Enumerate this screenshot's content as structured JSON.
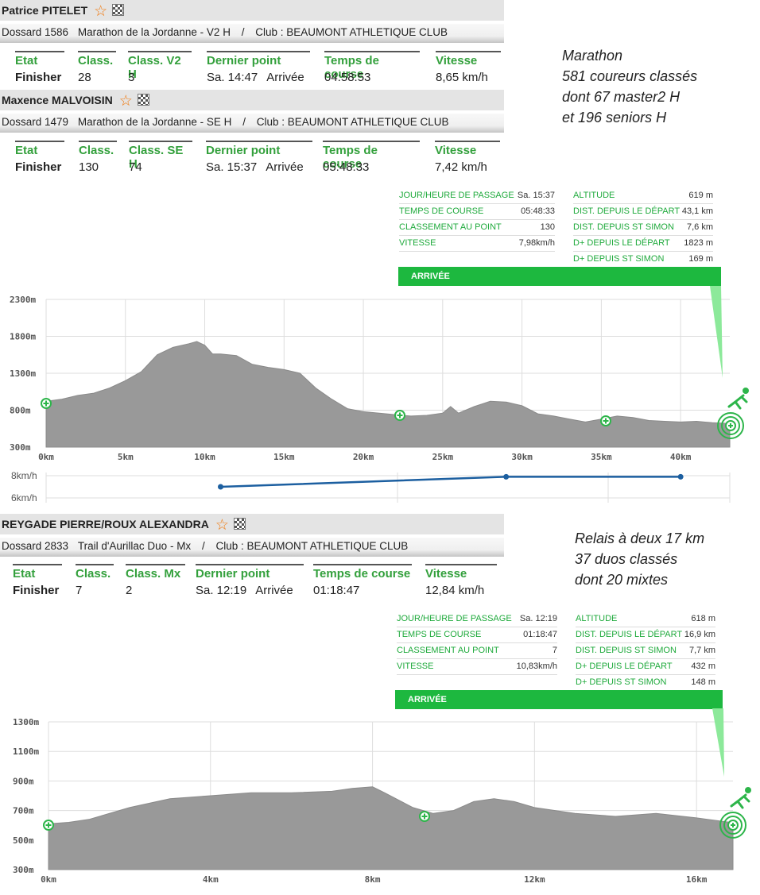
{
  "runner1": {
    "name": "Patrice PITELET",
    "dossard": "Dossard 1586",
    "course": "Marathon de la Jordanne - V2 H",
    "slash": "/",
    "club": "Club : BEAUMONT ATHLETIQUE CLUB",
    "headers": [
      "Etat",
      "Class.",
      "Class. V2 H",
      "Dernier point",
      "Temps de course",
      "Vitesse"
    ],
    "etat": "Finisher",
    "class": "28",
    "class_cat": "3",
    "dernier_jour": "Sa. 14:47",
    "dernier_point": "Arrivée",
    "temps": "04:58:53",
    "vitesse": "8,65 km/h"
  },
  "runner2": {
    "name": "Maxence MALVOISIN",
    "dossard": "Dossard 1479",
    "course": "Marathon de la Jordanne - SE H",
    "slash": "/",
    "club": "Club : BEAUMONT ATHLETIQUE CLUB",
    "headers": [
      "Etat",
      "Class.",
      "Class. SE H",
      "Dernier point",
      "Temps de course",
      "Vitesse"
    ],
    "etat": "Finisher",
    "class": "130",
    "class_cat": "74",
    "dernier_jour": "Sa. 15:37",
    "dernier_point": "Arrivée",
    "temps": "05:48:33",
    "vitesse": "7,42 km/h"
  },
  "note1": [
    "Marathon",
    "581 coureurs classés",
    "dont 67 master2 H",
    "et 196 seniors H"
  ],
  "info1": {
    "left": [
      [
        "JOUR/HEURE DE PASSAGE",
        "Sa. 15:37"
      ],
      [
        "TEMPS DE COURSE",
        "05:48:33"
      ],
      [
        "CLASSEMENT AU POINT",
        "130"
      ],
      [
        "VITESSE",
        "7,98km/h"
      ]
    ],
    "right": [
      [
        "ALTITUDE",
        "619 m"
      ],
      [
        "DIST. DEPUIS LE DÉPART",
        "43,1 km"
      ],
      [
        "DIST. DEPUIS ST SIMON",
        "7,6 km"
      ],
      [
        "D+ DEPUIS LE DÉPART",
        "1823 m"
      ],
      [
        "D+ DEPUIS ST SIMON",
        "169 m"
      ]
    ],
    "arrivee": "ARRIVÉE"
  },
  "chart1_axes": {
    "y_labels": [
      "2300m",
      "1800m",
      "1300m",
      "800m",
      "300m"
    ],
    "x_labels": [
      "0km",
      "5km",
      "10km",
      "15km",
      "20km",
      "25km",
      "30km",
      "35km",
      "40km"
    ],
    "speed_labels": [
      "8km/h",
      "6km/h"
    ]
  },
  "runner3": {
    "name": "REYGADE PIERRE/ROUX ALEXANDRA",
    "dossard": "Dossard 2833",
    "course": "Trail d'Aurillac Duo - Mx",
    "slash": "/",
    "club": "Club : BEAUMONT ATHLETIQUE CLUB",
    "headers": [
      "Etat",
      "Class.",
      "Class. Mx",
      "Dernier point",
      "Temps de course",
      "Vitesse"
    ],
    "etat": "Finisher",
    "class": "7",
    "class_cat": "2",
    "dernier_jour": "Sa. 12:19",
    "dernier_point": "Arrivée",
    "temps": "01:18:47",
    "vitesse": "12,84 km/h"
  },
  "note2": [
    "Relais à deux 17 km",
    "37 duos classés",
    "dont 20 mixtes"
  ],
  "info2": {
    "left": [
      [
        "JOUR/HEURE DE PASSAGE",
        "Sa. 12:19"
      ],
      [
        "TEMPS DE COURSE",
        "01:18:47"
      ],
      [
        "CLASSEMENT AU POINT",
        "7"
      ],
      [
        "VITESSE",
        "10,83km/h"
      ]
    ],
    "right": [
      [
        "ALTITUDE",
        "618 m"
      ],
      [
        "DIST. DEPUIS LE DÉPART",
        "16,9 km"
      ],
      [
        "DIST. DEPUIS ST SIMON",
        "7,7 km"
      ],
      [
        "D+ DEPUIS LE DÉPART",
        "432 m"
      ],
      [
        "D+ DEPUIS ST SIMON",
        "148 m"
      ]
    ],
    "arrivee": "ARRIVÉE"
  },
  "chart2_axes": {
    "y_labels": [
      "1300m",
      "1100m",
      "900m",
      "700m",
      "500m",
      "300m"
    ],
    "x_labels": [
      "0km",
      "4km",
      "8km",
      "12km",
      "16km"
    ]
  },
  "colors": {
    "accent": "#33a03c",
    "arrivee": "#1db83f",
    "profile": "#999999",
    "speed": "#1c5fa0"
  },
  "chart_data": [
    {
      "type": "area",
      "ylim": [
        300,
        2300
      ],
      "xlim": [
        0,
        43.1
      ],
      "x": [
        0,
        1,
        2,
        3,
        4,
        5,
        6,
        7,
        8,
        9,
        9.5,
        10,
        10.5,
        11,
        12,
        13,
        14,
        15,
        16,
        17,
        18,
        19,
        20,
        21,
        22,
        23,
        24,
        25,
        25.5,
        26,
        27,
        28,
        29,
        30,
        31,
        32,
        33,
        34,
        35,
        36,
        37,
        38,
        39,
        40,
        41,
        42,
        43.1
      ],
      "y": [
        920,
        950,
        1000,
        1030,
        1100,
        1200,
        1320,
        1550,
        1650,
        1700,
        1730,
        1680,
        1560,
        1560,
        1540,
        1420,
        1380,
        1350,
        1300,
        1100,
        950,
        820,
        780,
        760,
        740,
        720,
        730,
        760,
        850,
        760,
        850,
        920,
        910,
        860,
        750,
        720,
        680,
        640,
        680,
        720,
        700,
        660,
        650,
        640,
        650,
        630,
        619
      ]
    },
    {
      "type": "line",
      "x": [
        11,
        29,
        40
      ],
      "y": [
        7.0,
        7.9,
        7.9
      ]
    },
    {
      "type": "area",
      "ylim": [
        300,
        1300
      ],
      "xlim": [
        0,
        16.9
      ],
      "x": [
        0,
        0.5,
        1,
        2,
        3,
        4,
        5,
        6,
        7,
        7.5,
        8,
        8.3,
        9,
        9.5,
        10,
        10.5,
        11,
        11.5,
        12,
        13,
        14,
        15,
        16,
        16.9
      ],
      "y": [
        610,
        620,
        640,
        720,
        780,
        800,
        820,
        820,
        830,
        850,
        860,
        820,
        720,
        680,
        700,
        760,
        780,
        760,
        720,
        680,
        660,
        680,
        650,
        618
      ]
    }
  ]
}
